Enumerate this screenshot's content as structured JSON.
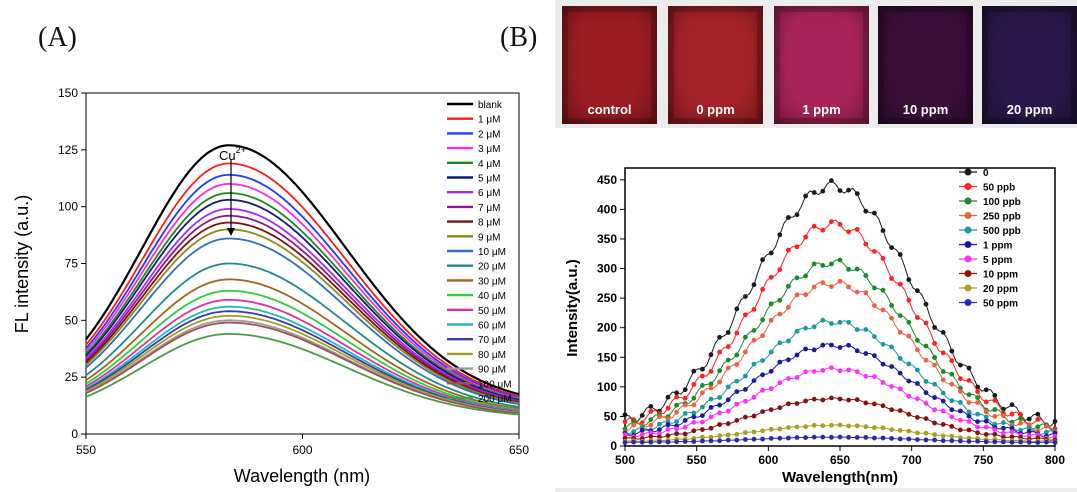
{
  "panels": {
    "a_label": "(A)",
    "b_label": "(B)"
  },
  "chart_data": [
    {
      "type": "line",
      "xlabel": "Wavelength (nm)",
      "ylabel": "FL intensity (a.u.)",
      "xlim": [
        550,
        650
      ],
      "ylim": [
        0,
        150
      ],
      "xticks": [
        550,
        600,
        650
      ],
      "yticks": [
        0,
        25,
        50,
        75,
        100,
        125,
        150
      ],
      "peak_x": 583,
      "annotation": "Cu",
      "annotation_sup": "2+",
      "legend_position": "right",
      "series": [
        {
          "name": "blank",
          "peak": 127,
          "color": "#000000"
        },
        {
          "name": "1 μM",
          "peak": 119,
          "color": "#ff1a1a"
        },
        {
          "name": "2 μM",
          "peak": 114,
          "color": "#1f3bff"
        },
        {
          "name": "3 μM",
          "peak": 110,
          "color": "#ff2bd6"
        },
        {
          "name": "4 μM",
          "peak": 106,
          "color": "#1a8a1a"
        },
        {
          "name": "5 μM",
          "peak": 103,
          "color": "#101a7a"
        },
        {
          "name": "6 μM",
          "peak": 99,
          "color": "#a52cf0"
        },
        {
          "name": "7 μM",
          "peak": 96,
          "color": "#8a1a8a"
        },
        {
          "name": "8 μM",
          "peak": 93,
          "color": "#7a1010"
        },
        {
          "name": "9 μM",
          "peak": 90,
          "color": "#8a8a1a"
        },
        {
          "name": "10 μM",
          "peak": 86,
          "color": "#2e6fbf"
        },
        {
          "name": "20 μM",
          "peak": 75,
          "color": "#1f8a8a"
        },
        {
          "name": "30 μM",
          "peak": 68,
          "color": "#a0641a"
        },
        {
          "name": "40 μM",
          "peak": 63,
          "color": "#2ecc40"
        },
        {
          "name": "50 μM",
          "peak": 59,
          "color": "#e0309a"
        },
        {
          "name": "60 μM",
          "peak": 56,
          "color": "#20b8c8"
        },
        {
          "name": "70 μM",
          "peak": 54,
          "color": "#3a3aa8"
        },
        {
          "name": "80 μM",
          "peak": 52,
          "color": "#a0a020"
        },
        {
          "name": "90 μM",
          "peak": 50,
          "color": "#9a9a9a"
        },
        {
          "name": "100 μM",
          "peak": 49,
          "color": "#a05050"
        },
        {
          "name": "200 μM",
          "peak": 44,
          "color": "#4a9a4a"
        }
      ]
    },
    {
      "type": "scatter",
      "xlabel": "Wavelength(nm)",
      "ylabel": "Intensity(a.u.)",
      "xlim": [
        500,
        800
      ],
      "ylim": [
        0,
        470
      ],
      "xticks": [
        500,
        550,
        600,
        650,
        700,
        750,
        800
      ],
      "yticks": [
        0,
        50,
        100,
        150,
        200,
        250,
        300,
        350,
        400,
        450
      ],
      "peak_x": 645,
      "legend_position": "top-right",
      "series": [
        {
          "name": "0",
          "peak": 440,
          "color": "#1a1a1a"
        },
        {
          "name": "50 ppb",
          "peak": 375,
          "color": "#ff2020"
        },
        {
          "name": "100 ppb",
          "peak": 310,
          "color": "#1a8a2a"
        },
        {
          "name": "250 ppb",
          "peak": 275,
          "color": "#f06040"
        },
        {
          "name": "500 ppb",
          "peak": 210,
          "color": "#1a9a9a"
        },
        {
          "name": "1 ppm",
          "peak": 170,
          "color": "#1a1a9a"
        },
        {
          "name": "5 ppm",
          "peak": 130,
          "color": "#ff30ff"
        },
        {
          "name": "10 ppm",
          "peak": 80,
          "color": "#8a1010"
        },
        {
          "name": "20 ppm",
          "peak": 35,
          "color": "#a8a020"
        },
        {
          "name": "50 ppm",
          "peak": 15,
          "color": "#2a2ab0"
        }
      ]
    }
  ],
  "photo_strip": {
    "tiles": [
      {
        "label": "control",
        "color": "#9b1c22"
      },
      {
        "label": "0 ppm",
        "color": "#a32229"
      },
      {
        "label": "1 ppm",
        "color": "#a8245a"
      },
      {
        "label": "10 ppm",
        "color": "#3a0f3a"
      },
      {
        "label": "20 ppm",
        "color": "#2a1848"
      }
    ]
  }
}
